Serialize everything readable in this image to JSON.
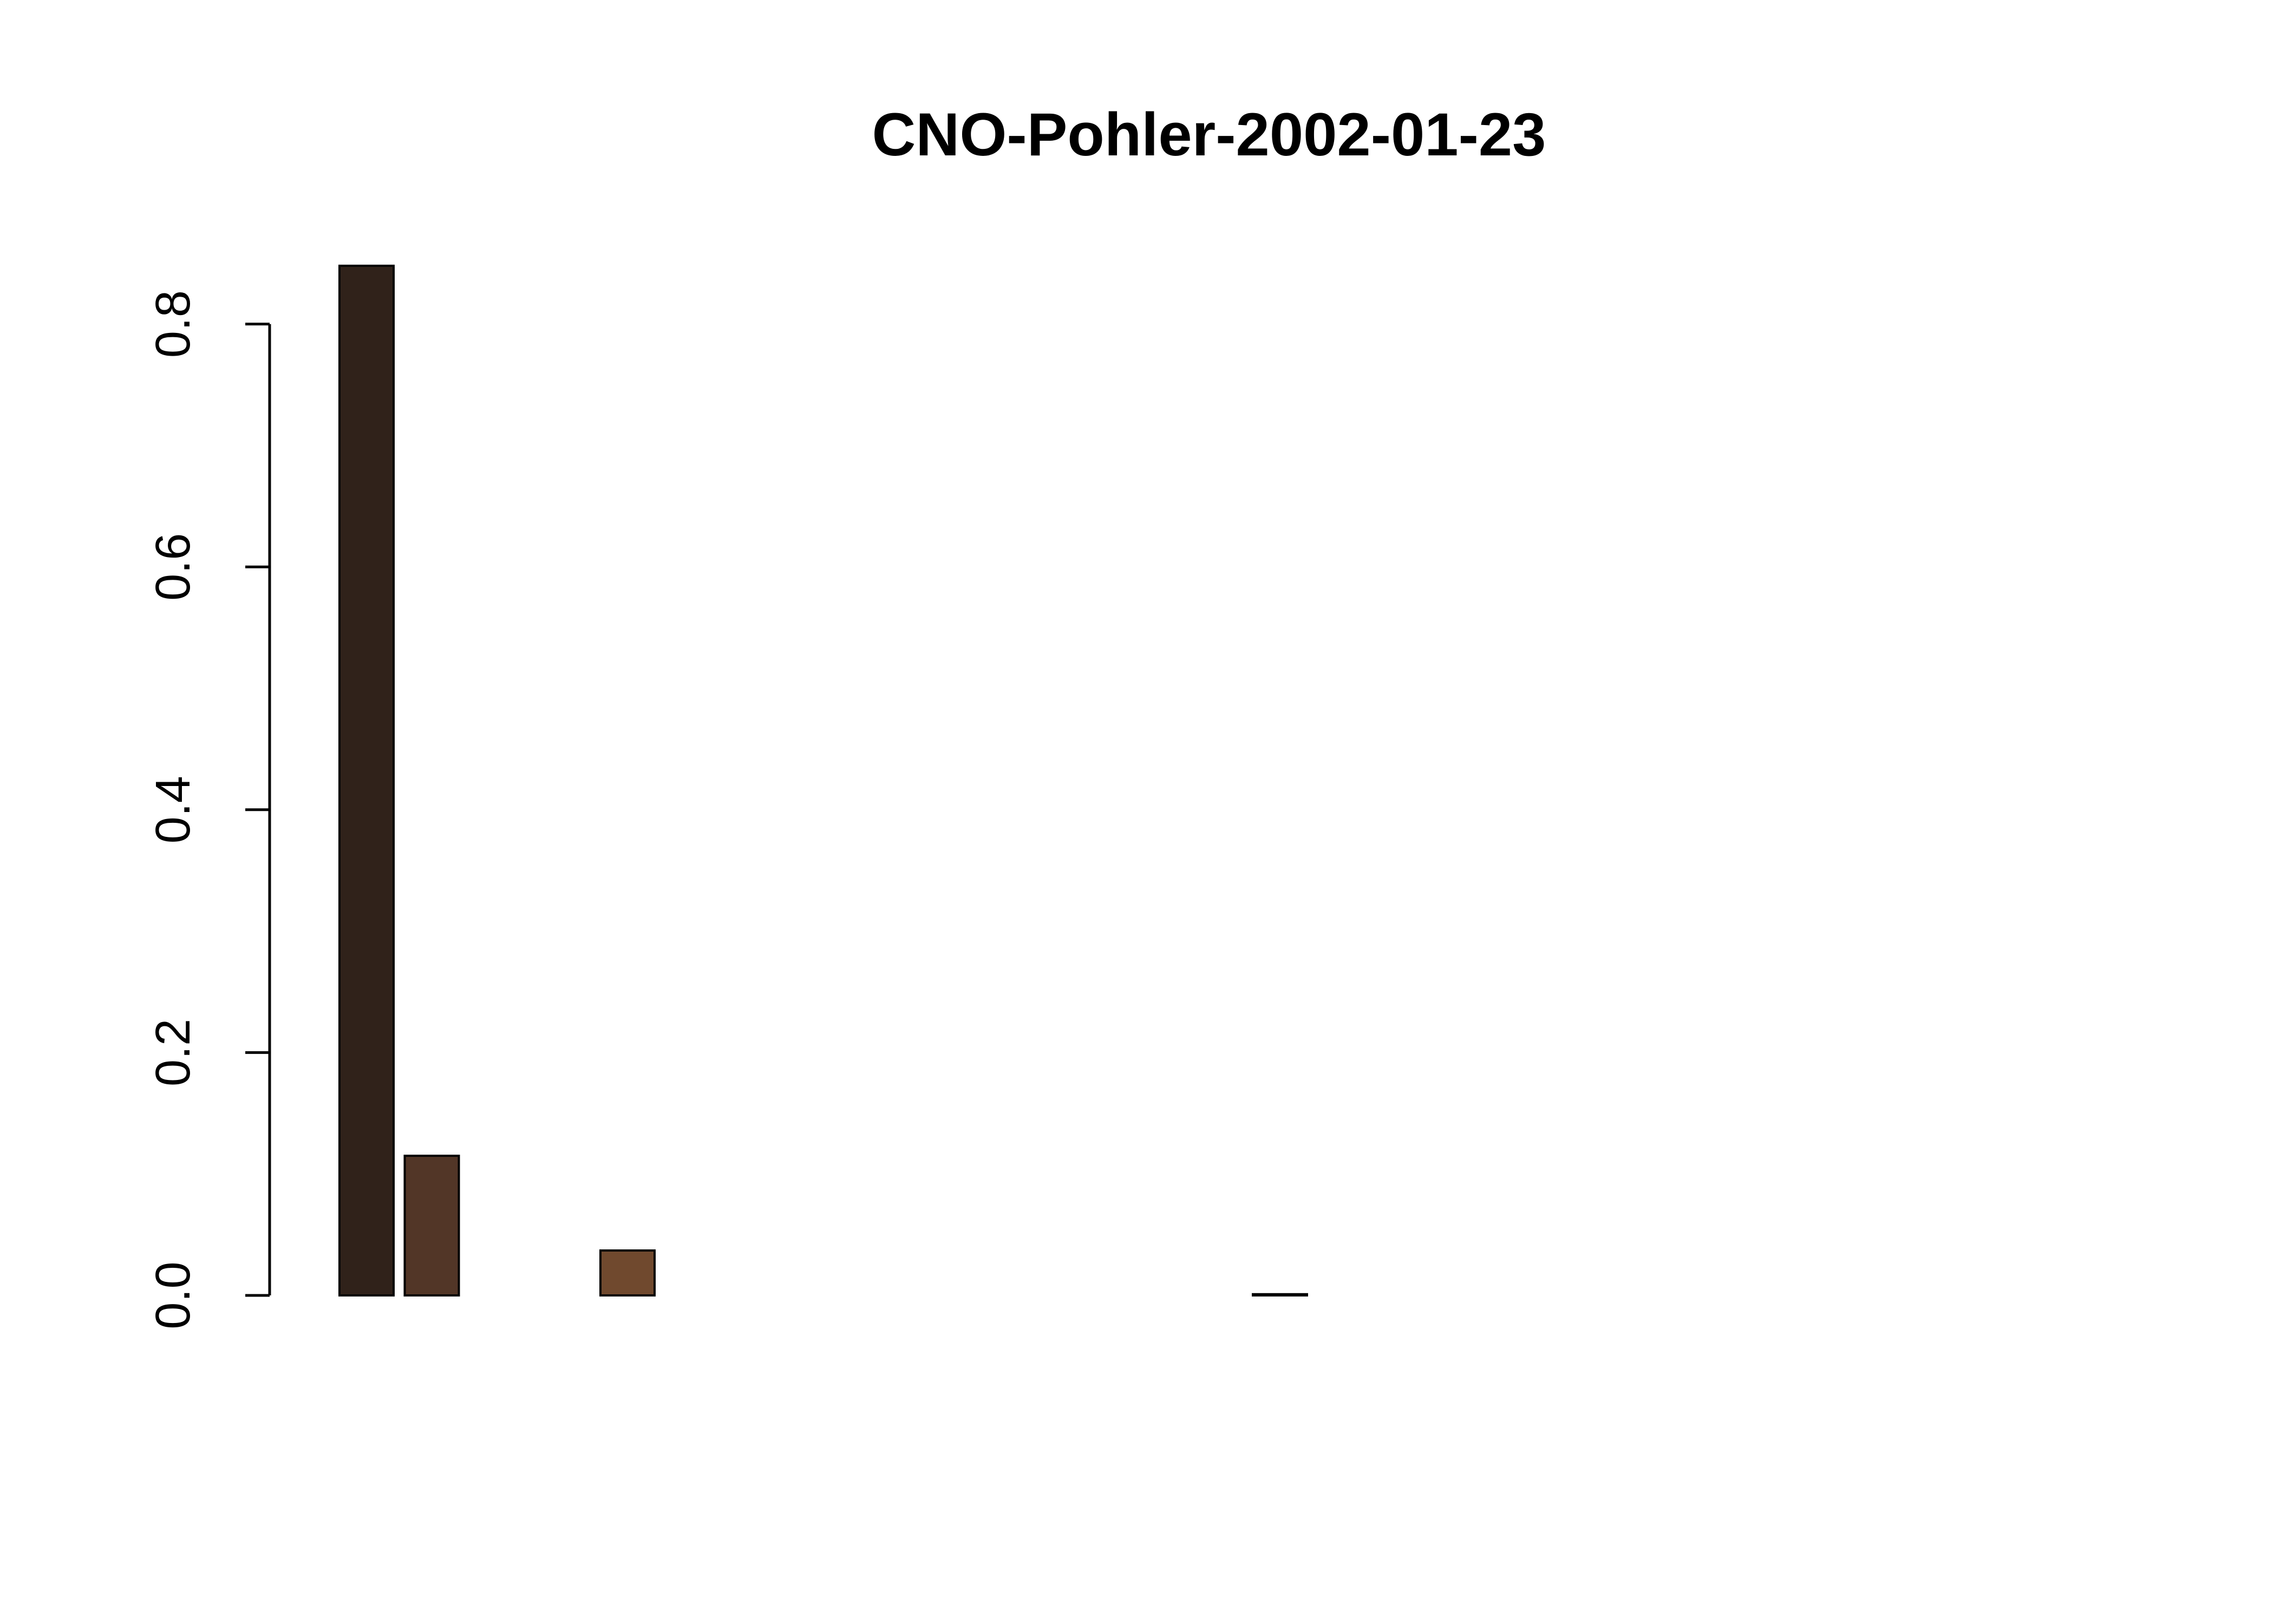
{
  "chart_data": {
    "type": "bar",
    "title": "CNO-Pohler-2002-01-23",
    "xlabel": "",
    "ylabel": "",
    "ylim": [
      0,
      0.85
    ],
    "yticks": [
      0.0,
      0.2,
      0.4,
      0.6,
      0.8
    ],
    "ytick_labels": [
      "0.0",
      "0.2",
      "0.4",
      "0.6",
      "0.8"
    ],
    "categories": [
      "",
      "",
      "",
      "",
      "",
      "",
      "",
      "",
      "",
      "",
      "",
      "",
      "",
      "",
      "",
      "",
      "",
      "",
      "",
      "",
      "",
      "",
      "",
      "",
      "",
      "",
      ""
    ],
    "values": [
      0.848,
      0.115,
      0.0,
      0.0,
      0.037,
      0.0,
      0.0,
      0.0,
      0.0,
      0.0,
      0.0,
      0.0,
      0.0,
      0.0,
      0.001,
      0.0,
      0.0,
      0.0,
      0.0,
      0.0,
      0.0,
      0.0,
      0.0,
      0.0,
      0.0,
      0.0,
      0.0
    ],
    "bar_colors": [
      "#30221a",
      "#523627",
      "#5a3b29",
      "#5e3e2b",
      "#70492e",
      "#6b4a2e",
      "#6b4a2e",
      "#6b4a2e",
      "#6b4a2e",
      "#6b4a2e",
      "#6b4a2e",
      "#6b4a2e",
      "#6b4a2e",
      "#6b4a2e",
      "#6b4a2e",
      "#6b4a2e",
      "#6b4a2e",
      "#6b4a2e",
      "#6b4a2e",
      "#6b4a2e",
      "#6b4a2e",
      "#6b4a2e",
      "#6b4a2e",
      "#6b4a2e",
      "#6b4a2e",
      "#6b4a2e",
      "#6b4a2e"
    ],
    "grid": false,
    "legend": "none"
  }
}
